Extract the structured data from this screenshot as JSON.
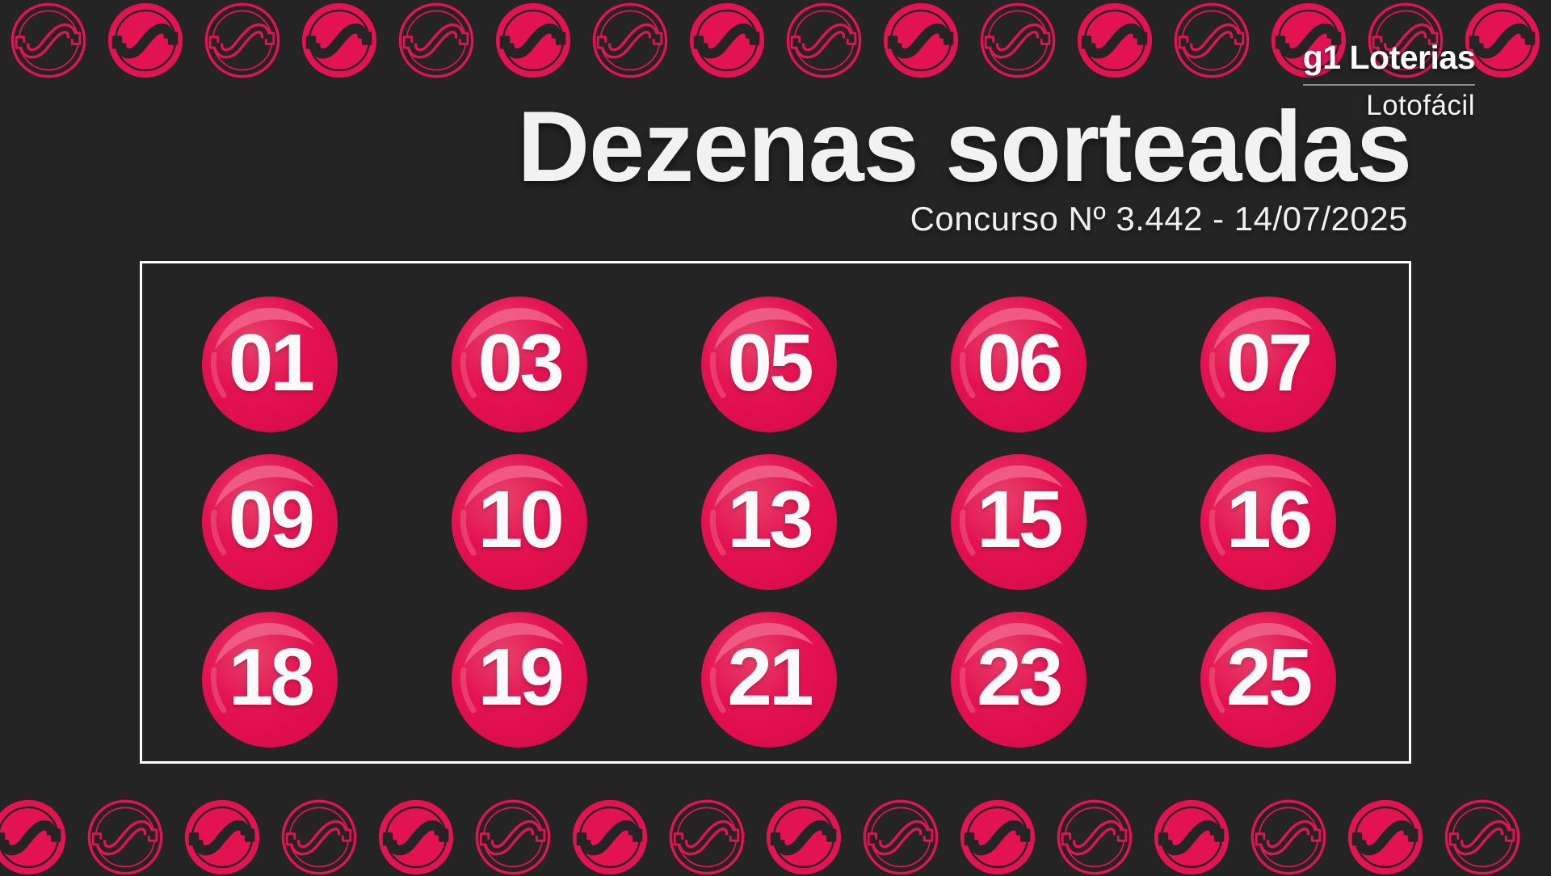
{
  "brand": {
    "logo": "g1 Loterias",
    "product": "Lotofácil"
  },
  "header": {
    "title": "Dezenas sorteadas",
    "subtitle": "Concurso Nº 3.442 - 14/07/2025"
  },
  "board": {
    "balls": [
      "01",
      "03",
      "05",
      "06",
      "07",
      "09",
      "10",
      "13",
      "15",
      "16",
      "18",
      "19",
      "21",
      "23",
      "25"
    ]
  },
  "decor": {
    "coin_icon": "money-coin-icon",
    "top_row": {
      "count": 16,
      "first_style": "outline"
    },
    "bottom_row": {
      "count": 16,
      "first_style": "filled"
    }
  },
  "colors": {
    "background": "#242424",
    "accent_pink": "#e31351",
    "ball_highlight": "#ef5e84",
    "text_white": "#f2f2f2",
    "board_border": "#ffffff"
  }
}
